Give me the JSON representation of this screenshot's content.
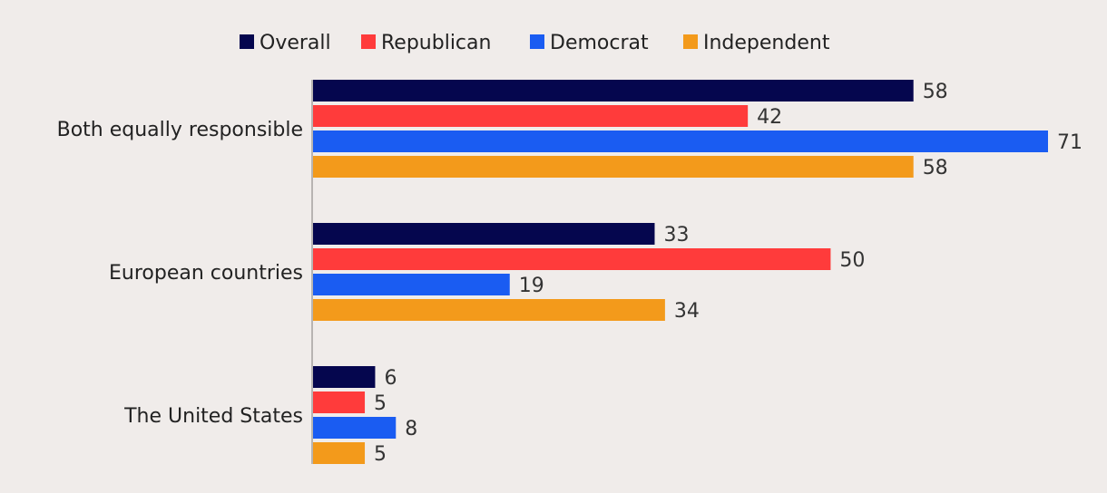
{
  "chart_data": {
    "type": "bar",
    "orientation": "horizontal",
    "title": "",
    "xlabel": "",
    "ylabel": "",
    "xlim": [
      0,
      71
    ],
    "grid": false,
    "legend_position": "top",
    "categories": [
      "Both equally responsible",
      "European countries",
      "The United States"
    ],
    "series": [
      {
        "name": "Overall",
        "color": "#05064e",
        "values": [
          58,
          33,
          6
        ]
      },
      {
        "name": "Republican",
        "color": "#ff3b3b",
        "values": [
          42,
          50,
          5
        ]
      },
      {
        "name": "Democrat",
        "color": "#1a5cf2",
        "values": [
          71,
          19,
          8
        ]
      },
      {
        "name": "Independent",
        "color": "#f39a1b",
        "values": [
          58,
          34,
          5
        ]
      }
    ]
  }
}
